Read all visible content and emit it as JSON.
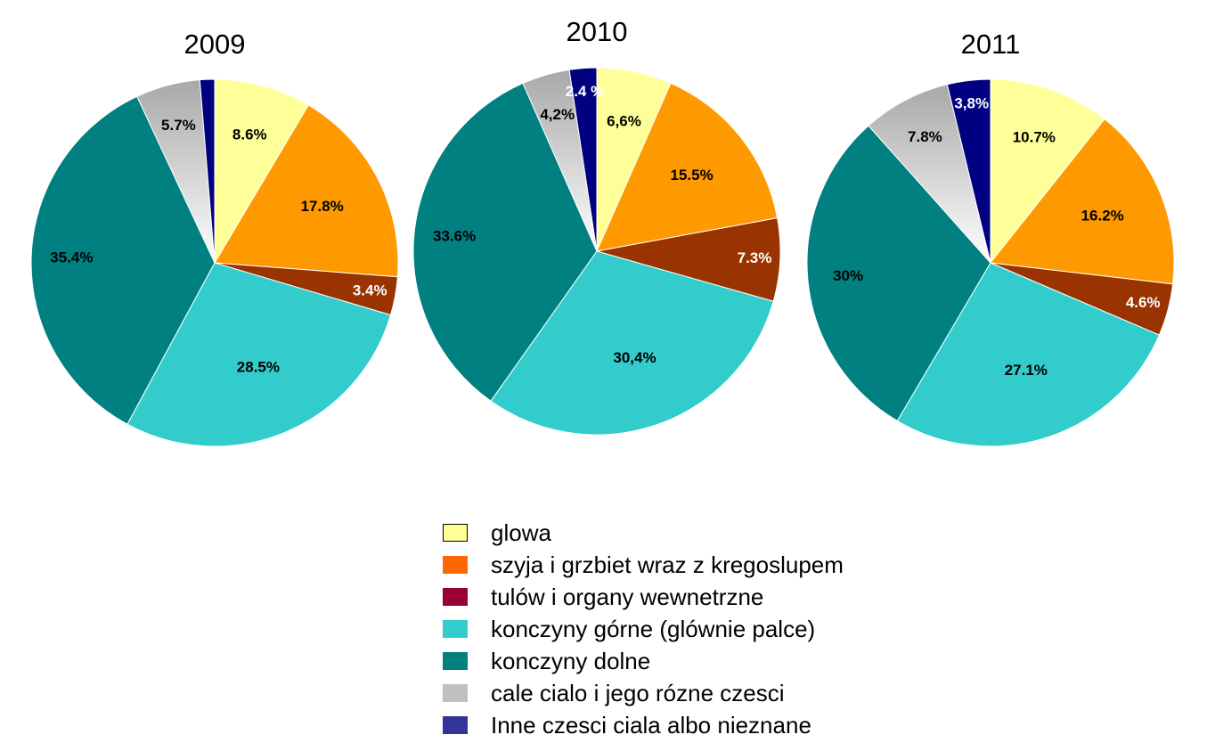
{
  "chart_data": {
    "type": "pie",
    "legend_position": "bottom-center",
    "categories": [
      "glowa",
      "szyja i grzbiet wraz z kregoslupem",
      "tulów i organy wewnetrzne",
      "konczyny górne (glównie palce)",
      "konczyny dolne",
      "cale cialo i jego rózne czesci",
      "Inne czesci ciala albo nieznane"
    ],
    "legend_colors": [
      "#FFFF99",
      "#FF6600",
      "#990033",
      "#33CCCC",
      "#008080",
      "#C0C0C0",
      "#333399"
    ],
    "slice_colors": [
      "#FFFF99",
      "#FF9900",
      "#993300",
      "#33CCCC",
      "#008080",
      "#C0C0C0",
      "#000080"
    ],
    "label_colors": [
      "#000000",
      "#000000",
      "#FFFFFF",
      "#000000",
      "#000000",
      "#000000",
      "#FFFFFF"
    ],
    "pies": [
      {
        "title": "2009",
        "values": [
          8.6,
          17.8,
          3.4,
          28.5,
          35.4,
          5.7,
          1.3
        ],
        "labels": [
          "8.6%",
          "17.8%",
          "3.4%",
          "28.5%",
          "35.4%",
          "5.7%",
          ""
        ]
      },
      {
        "title": "2010",
        "values": [
          6.6,
          15.5,
          7.3,
          30.4,
          33.6,
          4.2,
          2.4
        ],
        "labels": [
          "6,6%",
          "15.5%",
          "7.3%",
          "30,4%",
          "33.6%",
          "4,2%",
          "2.4 %"
        ]
      },
      {
        "title": "2011",
        "values": [
          10.7,
          16.2,
          4.6,
          27.1,
          30,
          7.8,
          3.8
        ],
        "labels": [
          "10.7%",
          "16.2%",
          "4.6%",
          "27.1%",
          "30%",
          "7.8%",
          "3,8%"
        ]
      }
    ]
  }
}
